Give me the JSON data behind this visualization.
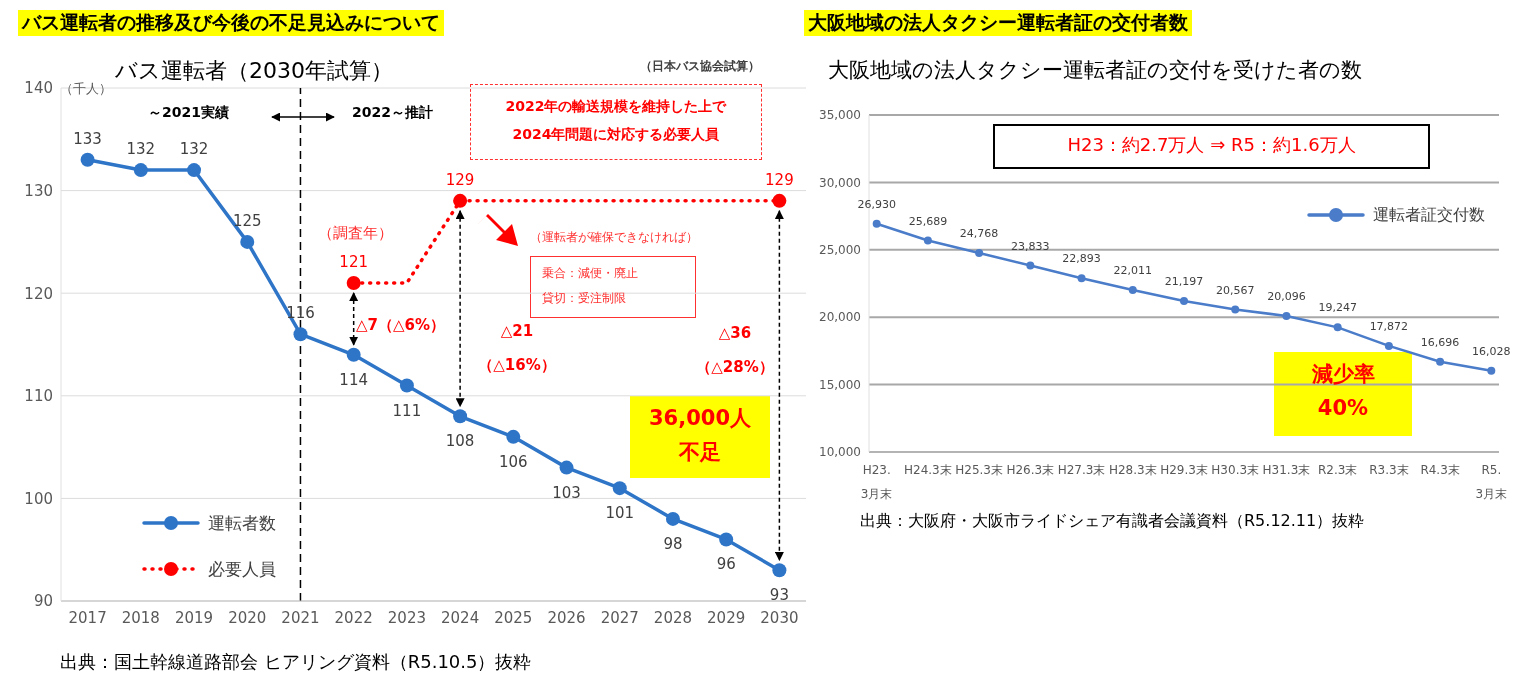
{
  "chart_data": [
    {
      "type": "line",
      "title": "バス運転者の推移及び今後の不足見込みについて",
      "subtitle": "バス運転者（2030年試算）",
      "ylabel": "（千人）",
      "categories": [
        "2017",
        "2018",
        "2019",
        "2020",
        "2021",
        "2022",
        "2023",
        "2024",
        "2025",
        "2026",
        "2027",
        "2028",
        "2029",
        "2030"
      ],
      "series": [
        {
          "name": "運転者数",
          "color": "#2e75c8",
          "values": [
            133,
            132,
            132,
            125,
            116,
            114,
            111,
            108,
            106,
            103,
            101,
            98,
            96,
            93
          ],
          "marker": "circle",
          "line_style": "solid",
          "data_labels": true
        },
        {
          "name": "必要人員",
          "color": "#ff0000",
          "values": [
            null,
            null,
            null,
            null,
            null,
            121,
            121,
            129,
            null,
            null,
            null,
            null,
            null,
            129
          ],
          "value_labels": [
            null,
            null,
            null,
            null,
            null,
            "121",
            null,
            "129",
            null,
            null,
            null,
            null,
            null,
            "129"
          ],
          "marker": "circle",
          "line_style": "dotted"
        }
      ],
      "ylim": [
        90,
        140
      ],
      "yticks": [
        90,
        100,
        110,
        120,
        130,
        140
      ],
      "grid": "y",
      "legend": "bottom left",
      "ref_lines": [
        {
          "axis": "x",
          "value": "2021",
          "color": "#000000",
          "line_style": "dashed"
        }
      ],
      "annotations": [
        "（日本バス協会試算）",
        "～2021実績",
        "2022～推計",
        "2022年の輸送規模を維持した上で",
        "2024年問題に対応する必要人員",
        "（調査年）",
        "（運転者が確保できなければ）",
        "乗合：減便・廃止",
        "貸切：受注制限",
        "△7（△6%）",
        "△21",
        "（△16%）",
        "△36",
        "（△28%）",
        "36,000人",
        "不足",
        "出典：国土幹線道路部会 ヒアリング資料（R5.10.5）抜粋"
      ]
    },
    {
      "type": "line",
      "title": "大阪地域の法人タクシー運転者証の交付者数",
      "subtitle": "大阪地域の法人タクシー運転者証の交付を受けた者の数",
      "categories": [
        "H23.\n3月末",
        "H24.3末",
        "H25.3末",
        "H26.3末",
        "H27.3末",
        "H28.3末",
        "H29.3末",
        "H30.3末",
        "H31.3末",
        "R2.3末",
        "R3.3末",
        "R4.3末",
        "R5.\n3月末"
      ],
      "series": [
        {
          "name": "運転者証交付数",
          "color": "#4a7cc9",
          "values": [
            26930,
            25689,
            24768,
            23833,
            22893,
            22011,
            21197,
            20567,
            20096,
            19247,
            17872,
            16696,
            16028
          ],
          "value_labels": [
            "26,930",
            "25,689",
            "24,768",
            "23,833",
            "22,893",
            "22,011",
            "21,197",
            "20,567",
            "20,096",
            "19,247",
            "17,872",
            "16,696",
            "16,028"
          ],
          "marker": "circle",
          "line_style": "solid"
        }
      ],
      "ylim": [
        10000,
        35000
      ],
      "yticks": [
        {
          "value": 10000,
          "label": "10,000"
        },
        {
          "value": 15000,
          "label": "15,000"
        },
        {
          "value": 20000,
          "label": "20,000"
        },
        {
          "value": 25000,
          "label": "25,000"
        },
        {
          "value": 30000,
          "label": "30,000"
        },
        {
          "value": 35000,
          "label": "35,000"
        }
      ],
      "grid": "y",
      "legend": "top right",
      "annotations": [
        "H23：約2.7万人 ⇒ R5：約1.6万人",
        "減少率",
        "40%",
        "出典：大阪府・大阪市ライドシェア有識者会議資料（R5.12.11）抜粋"
      ]
    }
  ]
}
